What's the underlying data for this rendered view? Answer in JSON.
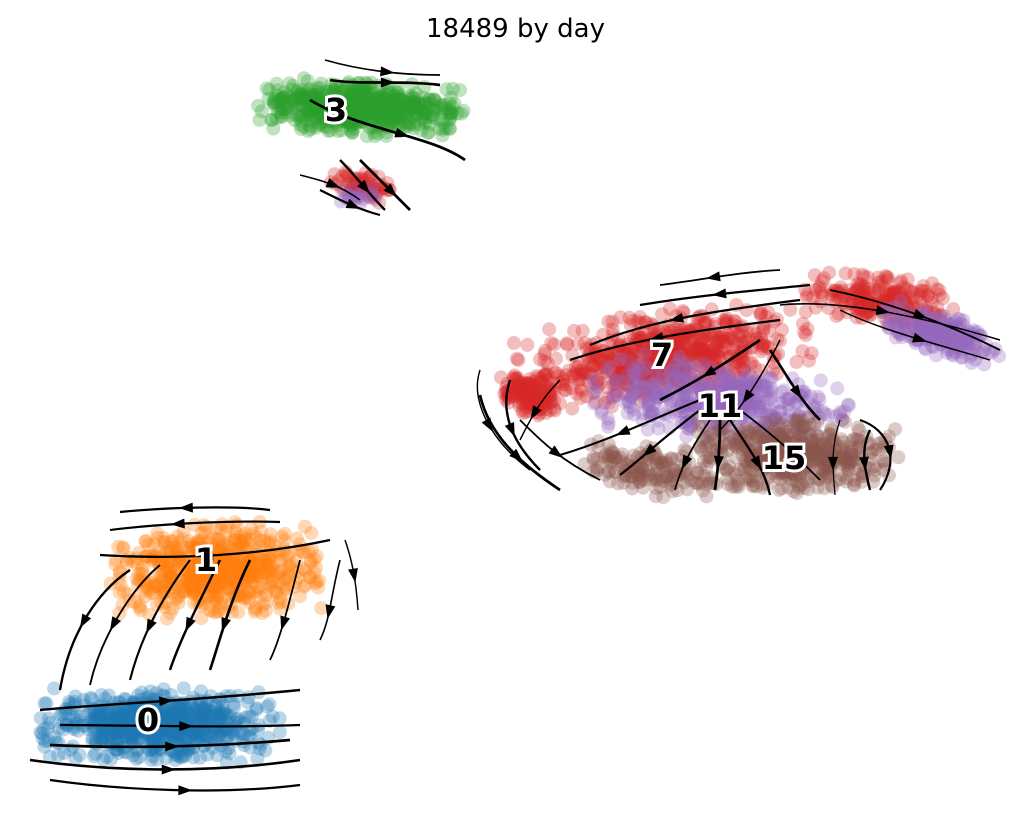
{
  "chart_data": {
    "type": "scatter",
    "title": "18489 by day",
    "xlabel": "",
    "ylabel": "",
    "grid": false,
    "axes_visible": false,
    "overlay": "velocity streamlines with arrowheads",
    "series": [
      {
        "label": "0",
        "color": "#1f77b4"
      },
      {
        "label": "1",
        "color": "#ff7f0e"
      },
      {
        "label": "3",
        "color": "#2ca02c"
      },
      {
        "label": "7",
        "color": "#d62728"
      },
      {
        "label": "11",
        "color": "#9467bd"
      },
      {
        "label": "15",
        "color": "#8c564b"
      }
    ]
  }
}
